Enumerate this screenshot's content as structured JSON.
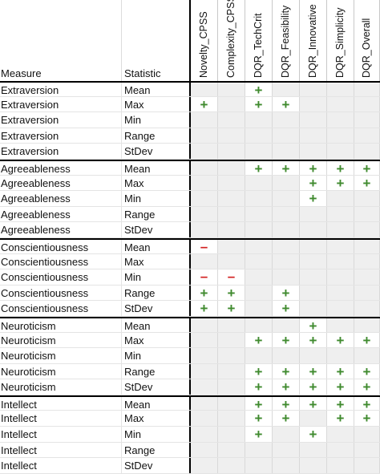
{
  "header": {
    "measure_label": "Measure",
    "statistic_label": "Statistic",
    "columns": [
      "Novelty_CPSS",
      "Complexity_CPSS",
      "DQR_TechCrit",
      "DQR_Feasibility",
      "DQR_Innovative",
      "DQR_Simplicity",
      "DQR_Overall"
    ]
  },
  "symbols": {
    "positive": "+",
    "negative": "–"
  },
  "colors": {
    "positive": "#3f8a2e",
    "negative": "#d21f1f",
    "shade": "#efefef"
  },
  "rows": [
    {
      "measure": "Extraversion",
      "statistic": "Mean",
      "cells": [
        "",
        "",
        "+",
        "",
        "",
        "",
        ""
      ]
    },
    {
      "measure": "Extraversion",
      "statistic": "Max",
      "cells": [
        "+",
        "",
        "+",
        "+",
        "",
        "",
        ""
      ]
    },
    {
      "measure": "Extraversion",
      "statistic": "Min",
      "cells": [
        "",
        "",
        "",
        "",
        "",
        "",
        ""
      ]
    },
    {
      "measure": "Extraversion",
      "statistic": "Range",
      "cells": [
        "",
        "",
        "",
        "",
        "",
        "",
        ""
      ]
    },
    {
      "measure": "Extraversion",
      "statistic": "StDev",
      "cells": [
        "",
        "",
        "",
        "",
        "",
        "",
        ""
      ]
    },
    {
      "measure": "Agreeableness",
      "statistic": "Mean",
      "cells": [
        "",
        "",
        "+",
        "+",
        "+",
        "+",
        "+"
      ]
    },
    {
      "measure": "Agreeableness",
      "statistic": "Max",
      "cells": [
        "",
        "",
        "",
        "",
        "+",
        "+",
        "+"
      ]
    },
    {
      "measure": "Agreeableness",
      "statistic": "Min",
      "cells": [
        "",
        "",
        "",
        "",
        "+",
        "",
        ""
      ]
    },
    {
      "measure": "Agreeableness",
      "statistic": "Range",
      "cells": [
        "",
        "",
        "",
        "",
        "",
        "",
        ""
      ]
    },
    {
      "measure": "Agreeableness",
      "statistic": "StDev",
      "cells": [
        "",
        "",
        "",
        "",
        "",
        "",
        ""
      ]
    },
    {
      "measure": "Conscientiousness",
      "statistic": "Mean",
      "cells": [
        "-",
        "",
        "",
        "",
        "",
        "",
        ""
      ]
    },
    {
      "measure": "Conscientiousness",
      "statistic": "Max",
      "cells": [
        "",
        "",
        "",
        "",
        "",
        "",
        ""
      ]
    },
    {
      "measure": "Conscientiousness",
      "statistic": "Min",
      "cells": [
        "-",
        "-",
        "",
        "",
        "",
        "",
        ""
      ]
    },
    {
      "measure": "Conscientiousness",
      "statistic": "Range",
      "cells": [
        "+",
        "+",
        "",
        "+",
        "",
        "",
        ""
      ]
    },
    {
      "measure": "Conscientiousness",
      "statistic": "StDev",
      "cells": [
        "+",
        "+",
        "",
        "+",
        "",
        "",
        ""
      ]
    },
    {
      "measure": "Neuroticism",
      "statistic": "Mean",
      "cells": [
        "",
        "",
        "",
        "",
        "+",
        "",
        ""
      ]
    },
    {
      "measure": "Neuroticism",
      "statistic": "Max",
      "cells": [
        "",
        "",
        "+",
        "+",
        "+",
        "+",
        "+"
      ]
    },
    {
      "measure": "Neuroticism",
      "statistic": "Min",
      "cells": [
        "",
        "",
        "",
        "",
        "",
        "",
        ""
      ]
    },
    {
      "measure": "Neuroticism",
      "statistic": "Range",
      "cells": [
        "",
        "",
        "+",
        "+",
        "+",
        "+",
        "+"
      ]
    },
    {
      "measure": "Neuroticism",
      "statistic": "StDev",
      "cells": [
        "",
        "",
        "+",
        "+",
        "+",
        "+",
        "+"
      ]
    },
    {
      "measure": "Intellect",
      "statistic": "Mean",
      "cells": [
        "",
        "",
        "+",
        "+",
        "+",
        "+",
        "+"
      ]
    },
    {
      "measure": "Intellect",
      "statistic": "Max",
      "cells": [
        "",
        "",
        "+",
        "+",
        "",
        "+",
        "+"
      ]
    },
    {
      "measure": "Intellect",
      "statistic": "Min",
      "cells": [
        "",
        "",
        "+",
        "",
        "+",
        "",
        ""
      ]
    },
    {
      "measure": "Intellect",
      "statistic": "Range",
      "cells": [
        "",
        "",
        "",
        "",
        "",
        "",
        ""
      ]
    },
    {
      "measure": "Intellect",
      "statistic": "StDev",
      "cells": [
        "",
        "",
        "",
        "",
        "",
        "",
        ""
      ]
    }
  ]
}
